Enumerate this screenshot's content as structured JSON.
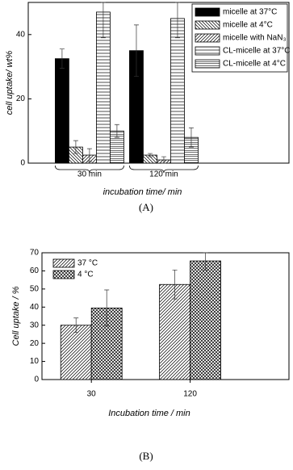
{
  "chart_data": [
    {
      "type": "bar",
      "caption": "(A)",
      "ylabel": "cell uptake/ wt%",
      "xlabel": "incubation time/ min",
      "categories": [
        "30 min",
        "120 min"
      ],
      "ylim": [
        0,
        50
      ],
      "yticks": [
        0,
        20,
        40
      ],
      "legend": "upper right",
      "legend_frame": true,
      "category_braces": true,
      "series": [
        {
          "name": "micelle at 37°C",
          "color": "#000000",
          "hatch": "solid",
          "values": [
            32.5,
            35
          ],
          "errors": [
            3,
            8
          ]
        },
        {
          "name": "micelle at 4°C",
          "color": "#000000",
          "hatch": "backdiagonal",
          "values": [
            5,
            2.5
          ],
          "errors": [
            2,
            0.5
          ]
        },
        {
          "name": "micelle with NaN₃",
          "color": "#000000",
          "hatch": "diagonal",
          "values": [
            2.5,
            1
          ],
          "errors": [
            2,
            1
          ]
        },
        {
          "name": "CL-micelle at 37°C",
          "color": "#000000",
          "hatch": "horizontal",
          "values": [
            47,
            45
          ],
          "errors": [
            8,
            6
          ]
        },
        {
          "name": "CL-micelle at 4°C",
          "color": "#000000",
          "hatch": "horizontal-dense",
          "values": [
            10,
            8
          ],
          "errors": [
            2,
            3
          ]
        }
      ]
    },
    {
      "type": "bar",
      "caption": "(B)",
      "ylabel": "Cell uptake / %",
      "xlabel": "Incubation time / min",
      "categories": [
        "30",
        "120"
      ],
      "ylim": [
        0,
        70
      ],
      "yticks": [
        0,
        10,
        20,
        30,
        40,
        50,
        60,
        70
      ],
      "legend": "upper left",
      "legend_frame": false,
      "category_braces": false,
      "series": [
        {
          "name": "37 °C",
          "color": "#000000",
          "hatch": "diagonal",
          "values": [
            30,
            52.5
          ],
          "errors": [
            4,
            8
          ]
        },
        {
          "name": "4 °C",
          "color": "#000000",
          "hatch": "cross",
          "values": [
            39.5,
            65.5
          ],
          "errors": [
            10,
            5
          ]
        }
      ]
    }
  ]
}
